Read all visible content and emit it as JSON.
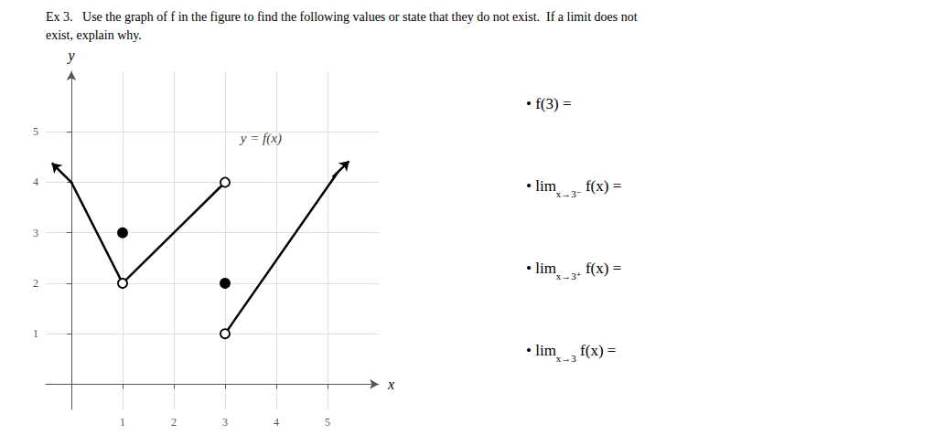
{
  "chart_data": {
    "type": "line",
    "title": "Ex 3.   Use the graph of f in the figure to find the following values or state that they do not exist.  If a limit does not",
    "subtitle": "exist, explain why.",
    "xlabel": "x",
    "ylabel": "y",
    "xlim": [
      -0.5,
      6.0
    ],
    "ylim": [
      -0.5,
      6.2
    ],
    "xticks": [
      1,
      2,
      3,
      4,
      5
    ],
    "yticks": [
      1,
      2,
      3,
      4,
      5
    ],
    "grid": true,
    "series": [
      {
        "type": "line",
        "color": "black",
        "x": [
          0.0,
          1.0
        ],
        "values": [
          4.0,
          2.0
        ]
      },
      {
        "type": "line",
        "color": "black",
        "x": [
          1.0,
          3.0
        ],
        "values": [
          2.0,
          4.0
        ]
      },
      {
        "type": "line",
        "color": "black",
        "x": [
          3.0,
          5.2
        ],
        "values": [
          1.0,
          4.2
        ]
      },
      {
        "type": "arrow",
        "color": "black",
        "x": [
          0.02,
          -0.38
        ],
        "values": [
          3.98,
          4.38
        ]
      },
      {
        "type": "arrow",
        "color": "black",
        "x": [
          5.1,
          5.42
        ],
        "values": [
          4.1,
          4.42
        ]
      },
      {
        "type": "scatter",
        "marker": "open circle",
        "color": "black",
        "x": [
          1.0,
          3.0,
          3.0
        ],
        "values": [
          2.0,
          4.0,
          1.0
        ]
      },
      {
        "type": "scatter",
        "marker": "circle",
        "color": "black",
        "x": [
          1.0,
          3.0
        ],
        "values": [
          3.0,
          2.0
        ]
      }
    ],
    "annotations": [
      {
        "text": "y = f(x)",
        "x": 3.3,
        "y": 4.75
      },
      {
        "text": "• f(3) ="
      },
      {
        "text": "• lim x→3⁻ f(x) ="
      },
      {
        "text": "• lim x→3⁺ f(x) ="
      },
      {
        "text": "• lim x→3 f(x) ="
      }
    ]
  }
}
